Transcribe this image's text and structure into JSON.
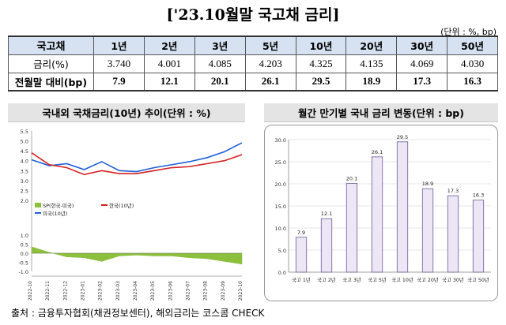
{
  "title": "['23.10월말 국고채 금리]",
  "unit": "(단위 : %, bp)",
  "table": {
    "header": [
      "국고채",
      "1년",
      "2년",
      "3년",
      "5년",
      "10년",
      "20년",
      "30년",
      "50년"
    ],
    "rows": [
      {
        "label": "금리(%)",
        "values": [
          "3.740",
          "4.001",
          "4.085",
          "4.203",
          "4.325",
          "4.135",
          "4.069",
          "4.030"
        ]
      },
      {
        "label": "전월말 대비(bp)",
        "values": [
          "7.9",
          "12.1",
          "20.1",
          "26.1",
          "29.5",
          "18.9",
          "17.3",
          "16.3"
        ]
      }
    ]
  },
  "chart_left_title": "국내외 국채금리(10년) 추이(단위 : %)",
  "chart_right_title": "월간 만기별 국내 금리 변동(단위 : bp)",
  "source": "출처 : 금융투자협회(채권정보센터), 해외금리는 코스콤 CHECK",
  "chart_data": [
    {
      "type": "line",
      "title": "국내외 국채금리(10년) 추이(단위 : %)",
      "x": [
        "2022-10",
        "2022-11",
        "2022-12",
        "2023-01",
        "2023-02",
        "2023-03",
        "2023-04",
        "2023-05",
        "2023-06",
        "2023-07",
        "2023-08",
        "2023-09",
        "2023-10"
      ],
      "yticks_top": [
        "5.5",
        "5.0",
        "4.5",
        "4.0",
        "3.5",
        "3.0",
        "2.5",
        "2.0"
      ],
      "yticks_bottom": [
        "1.0",
        "0.5",
        "0.0",
        "-0.5",
        "-1.0"
      ],
      "ylim_top": [
        2.0,
        5.5
      ],
      "ylim_bottom": [
        -1.0,
        1.0
      ],
      "series": [
        {
          "name": "미국(10년)",
          "color": "#1f5fd6",
          "values": [
            4.05,
            3.75,
            3.85,
            3.55,
            3.95,
            3.5,
            3.45,
            3.65,
            3.8,
            3.95,
            4.15,
            4.45,
            4.9
          ]
        },
        {
          "name": "한국(10년)",
          "color": "#d42020",
          "values": [
            4.4,
            3.8,
            3.65,
            3.3,
            3.5,
            3.35,
            3.35,
            3.5,
            3.65,
            3.7,
            3.85,
            4.0,
            4.3
          ]
        },
        {
          "name": "SP(한국-미국)",
          "color": "#8cbf3c",
          "values": [
            0.35,
            0.05,
            -0.2,
            -0.25,
            -0.45,
            -0.15,
            -0.1,
            -0.15,
            -0.15,
            -0.25,
            -0.3,
            -0.45,
            -0.6
          ]
        }
      ],
      "legend": "top-left",
      "grid": false
    },
    {
      "type": "bar",
      "title": "월간 만기별 국내 금리 변동(단위 : bp)",
      "categories": [
        "국고 1년",
        "국고 2년",
        "국고 3년",
        "국고 5년",
        "국고 10년",
        "국고 20년",
        "국고 30년",
        "국고 50년"
      ],
      "values": [
        7.9,
        12.1,
        20.1,
        26.1,
        29.5,
        18.9,
        17.3,
        16.3
      ],
      "labels": [
        "7.9",
        "12.1",
        "20.1",
        "26.1",
        "29.5",
        "18.9",
        "17.3",
        "16.3"
      ],
      "yticks": [
        "0.0",
        "5.0",
        "10.0",
        "15.0",
        "20.0",
        "25.0",
        "30.0"
      ],
      "ylim": [
        0,
        30
      ],
      "bar_color": "#ece6f5",
      "bar_edge": "#6d5a9a",
      "grid": true
    }
  ]
}
